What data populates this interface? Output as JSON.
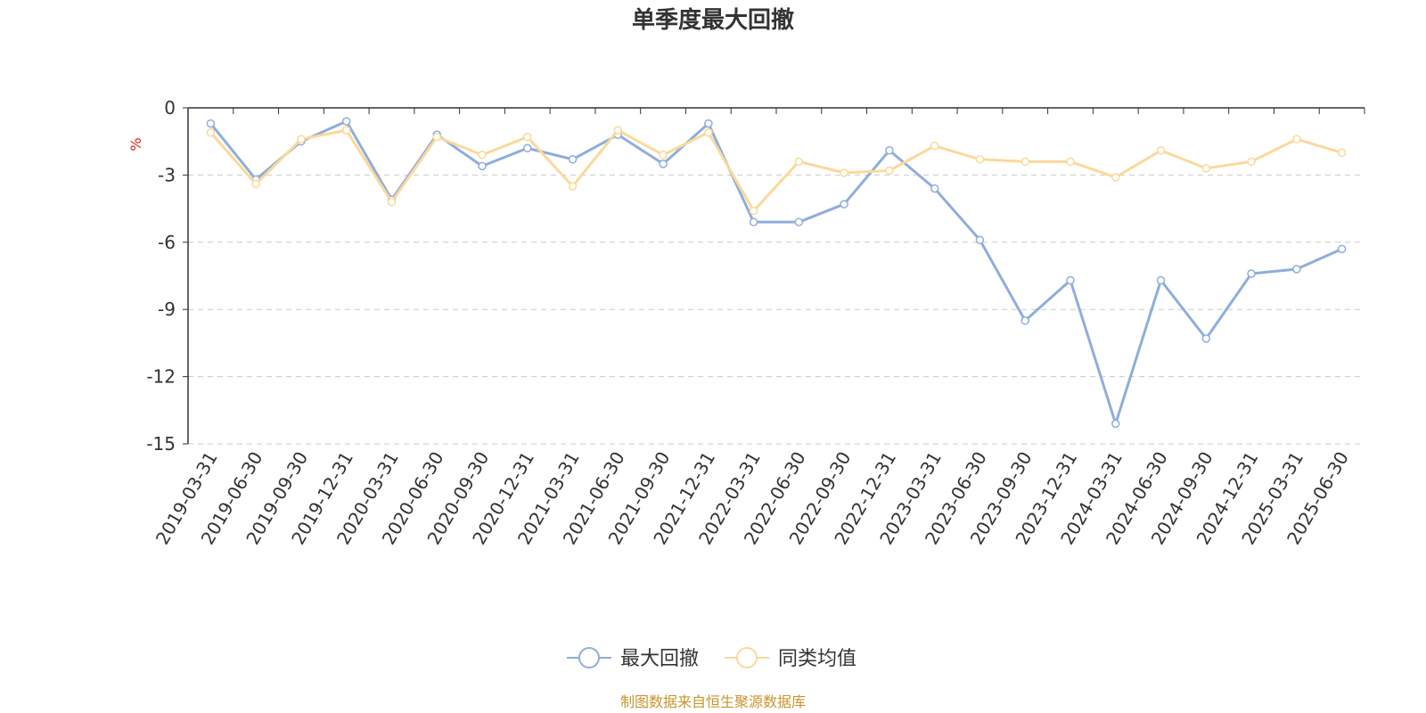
{
  "chart_data": {
    "type": "line",
    "title": "单季度最大回撤",
    "ylabel": "%",
    "xlabel": "",
    "ylim": [
      -15,
      0
    ],
    "yticks": [
      0,
      -3,
      -6,
      -9,
      -12,
      -15
    ],
    "grid": true,
    "legend_position": "bottom",
    "categories": [
      "2019-03-31",
      "2019-06-30",
      "2019-09-30",
      "2019-12-31",
      "2020-03-31",
      "2020-06-30",
      "2020-09-30",
      "2020-12-31",
      "2021-03-31",
      "2021-06-30",
      "2021-09-30",
      "2021-12-31",
      "2022-03-31",
      "2022-06-30",
      "2022-09-30",
      "2022-12-31",
      "2023-03-31",
      "2023-06-30",
      "2023-09-30",
      "2023-12-31",
      "2024-03-31",
      "2024-06-30",
      "2024-09-30",
      "2024-12-31",
      "2025-03-31",
      "2025-06-30"
    ],
    "series": [
      {
        "name": "最大回撤",
        "color": "#8eaedb",
        "values": [
          -0.7,
          -3.2,
          -1.5,
          -0.6,
          -4.1,
          -1.2,
          -2.6,
          -1.8,
          -2.3,
          -1.2,
          -2.5,
          -0.7,
          -5.1,
          -5.1,
          -4.3,
          -1.9,
          -3.6,
          -5.9,
          -9.5,
          -7.7,
          -14.1,
          -7.7,
          -10.3,
          -7.4,
          -7.2,
          -6.3
        ]
      },
      {
        "name": "同类均值",
        "color": "#fbd99a",
        "values": [
          -1.1,
          -3.4,
          -1.4,
          -1.0,
          -4.2,
          -1.3,
          -2.1,
          -1.3,
          -3.5,
          -1.0,
          -2.1,
          -1.1,
          -4.6,
          -2.4,
          -2.9,
          -2.8,
          -1.7,
          -2.3,
          -2.4,
          -2.4,
          -3.1,
          -1.9,
          -2.7,
          -2.4,
          -1.4,
          -2.0
        ]
      }
    ]
  },
  "footer": {
    "source": "制图数据来自恒生聚源数据库"
  }
}
